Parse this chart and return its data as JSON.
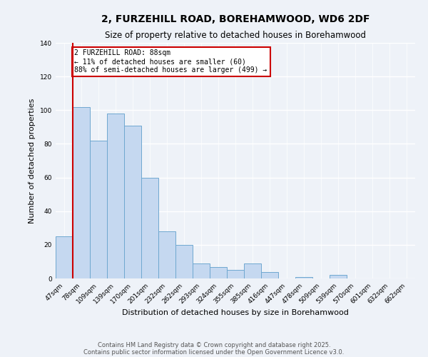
{
  "title": "2, FURZEHILL ROAD, BOREHAMWOOD, WD6 2DF",
  "subtitle": "Size of property relative to detached houses in Borehamwood",
  "xlabel": "Distribution of detached houses by size in Borehamwood",
  "ylabel": "Number of detached properties",
  "bar_labels": [
    "47sqm",
    "78sqm",
    "109sqm",
    "139sqm",
    "170sqm",
    "201sqm",
    "232sqm",
    "262sqm",
    "293sqm",
    "324sqm",
    "355sqm",
    "385sqm",
    "416sqm",
    "447sqm",
    "478sqm",
    "509sqm",
    "539sqm",
    "570sqm",
    "601sqm",
    "632sqm",
    "662sqm"
  ],
  "bar_values": [
    25,
    102,
    82,
    98,
    91,
    60,
    28,
    20,
    9,
    7,
    5,
    9,
    4,
    0,
    1,
    0,
    2,
    0,
    0,
    0,
    0
  ],
  "bar_color": "#c5d8f0",
  "bar_edge_color": "#6fa8d0",
  "vline_color": "#cc0000",
  "vline_bar_index": 1,
  "annotation_text": "2 FURZEHILL ROAD: 88sqm\n← 11% of detached houses are smaller (60)\n88% of semi-detached houses are larger (499) →",
  "annotation_box_color": "#ffffff",
  "annotation_box_edge": "#cc0000",
  "ylim": [
    0,
    140
  ],
  "yticks": [
    0,
    20,
    40,
    60,
    80,
    100,
    120,
    140
  ],
  "footer1": "Contains HM Land Registry data © Crown copyright and database right 2025.",
  "footer2": "Contains public sector information licensed under the Open Government Licence v3.0.",
  "bg_color": "#eef2f8"
}
